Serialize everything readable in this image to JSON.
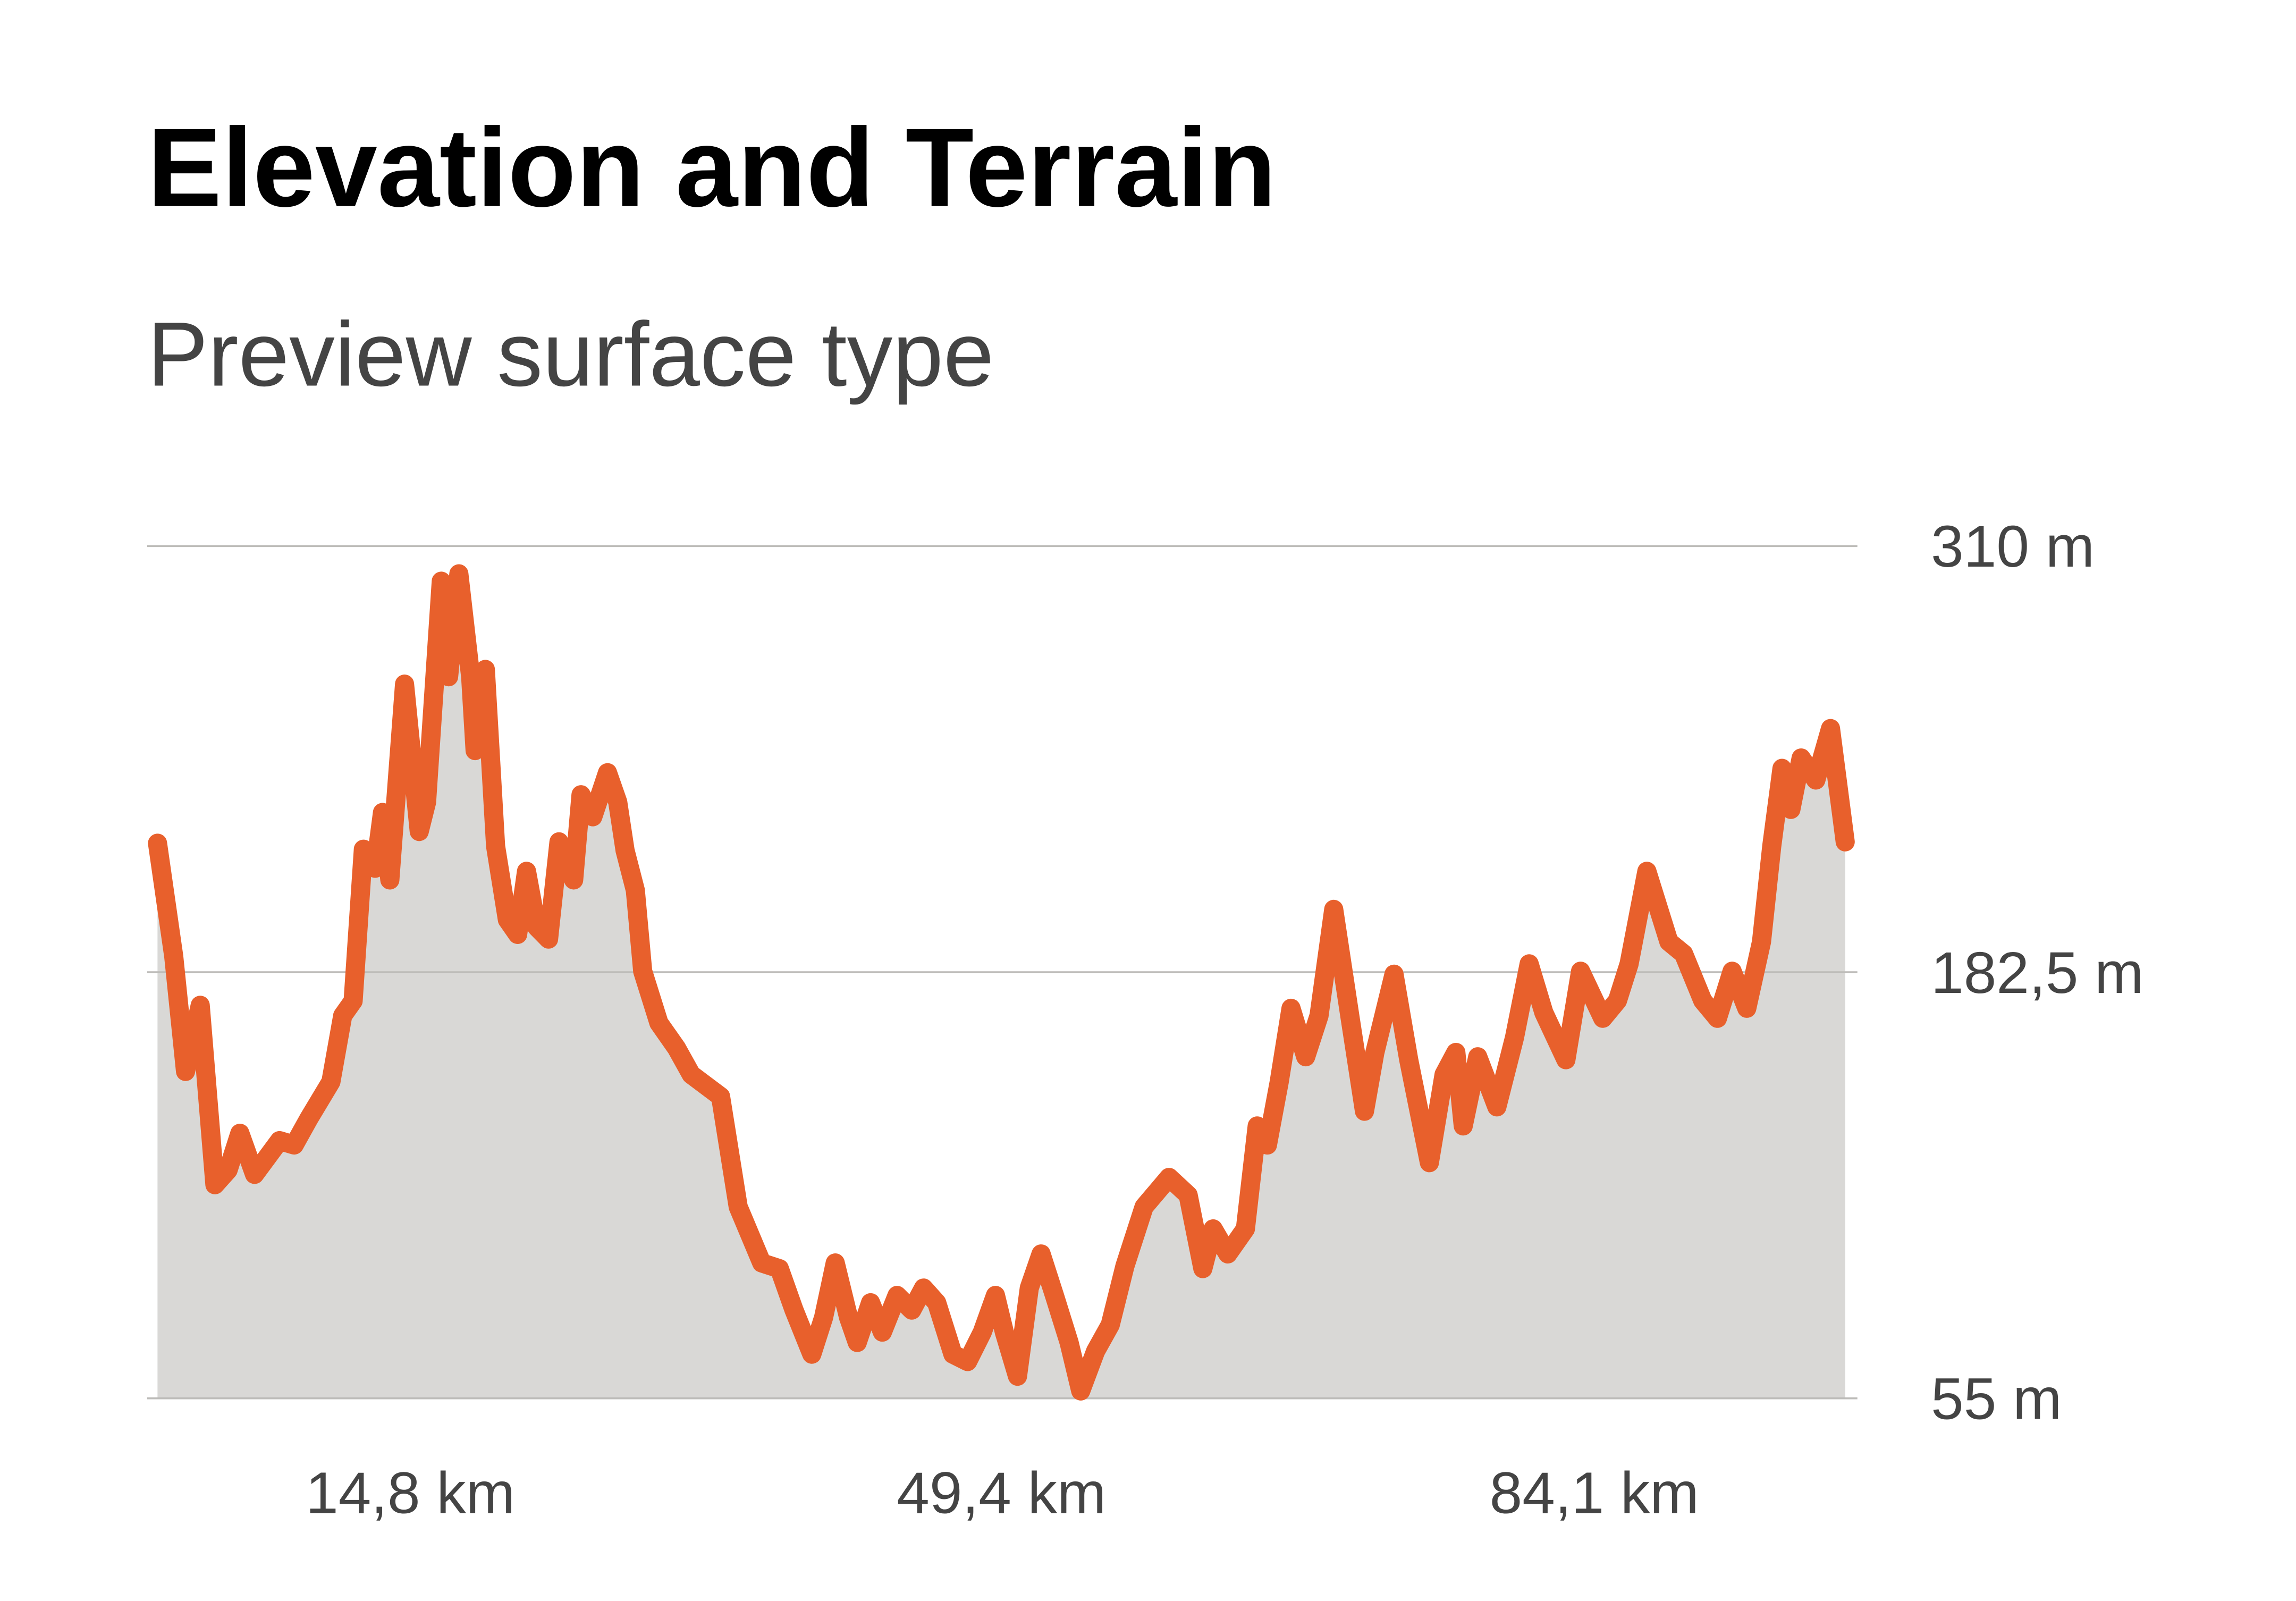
{
  "chart_data": {
    "type": "area",
    "title": "Elevation and Terrain",
    "subtitle": "Preview surface type",
    "color": "#e8602c",
    "fill": "#d9d8d6",
    "grid": true,
    "xlim": [
      0,
      98.9
    ],
    "ylim": [
      55,
      310
    ],
    "xticks": [
      {
        "value": 14.8,
        "label": "14,8 km"
      },
      {
        "value": 49.4,
        "label": "49,4 km"
      },
      {
        "value": 84.1,
        "label": "84,1 km"
      }
    ],
    "yticks": [
      {
        "value": 55,
        "label": "55 m"
      },
      {
        "value": 182.5,
        "label": "182,5 m"
      },
      {
        "value": 310,
        "label": "310 m"
      }
    ],
    "x": [
      0.0,
      0.95,
      1.64,
      2.5,
      3.36,
      4.13,
      4.82,
      5.68,
      7.14,
      8.0,
      8.86,
      10.15,
      10.84,
      11.45,
      12.05,
      12.74,
      13.17,
      13.6,
      14.46,
      15.32,
      15.75,
      16.61,
      17.04,
      17.64,
      18.33,
      18.59,
      19.19,
      19.79,
      20.48,
      21.08,
      21.6,
      22.2,
      22.89,
      23.5,
      24.36,
      24.79,
      25.48,
      26.34,
      26.94,
      27.37,
      27.97,
      28.4,
      29.35,
      30.38,
      31.24,
      32.96,
      33.99,
      35.37,
      36.4,
      37.26,
      38.3,
      38.99,
      39.67,
      40.45,
      40.96,
      41.74,
      42.43,
      43.29,
      44.15,
      44.84,
      45.61,
      46.56,
      47.42,
      48.28,
      49.05,
      49.57,
      50.34,
      51.03,
      51.72,
      52.5,
      53.36,
      54.04,
      54.91,
      55.77,
      56.63,
      57.75,
      59.21,
      60.33,
      61.19,
      61.79,
      62.65,
      63.68,
      64.37,
      64.97,
      65.66,
      66.35,
      67.21,
      67.99,
      68.85,
      69.79,
      70.65,
      71.26,
      72.38,
      73.24,
      74.45,
      75.31,
      76.0,
      76.43,
      77.28,
      78.4,
      79.43,
      80.29,
      81.15,
      82.44,
      83.3,
      84.6,
      85.46,
      86.14,
      87.18,
      88.47,
      89.33,
      90.45,
      91.31,
      92.17,
      93.03,
      93.89,
      94.49,
      95.09,
      95.61,
      96.21,
      97.07,
      97.93,
      98.79
    ],
    "values": [
      221.1,
      187.2,
      152.8,
      172.6,
      118.9,
      123.3,
      134.3,
      122.0,
      132.1,
      130.8,
      138.7,
      149.7,
      169.5,
      173.9,
      219.3,
      213.6,
      230.3,
      210.1,
      268.7,
      224.6,
      233.4,
      299.5,
      270.9,
      301.7,
      270.9,
      248.8,
      273.1,
      220.2,
      198.2,
      193.8,
      212.7,
      196.0,
      192.4,
      221.5,
      210.1,
      235.6,
      229.0,
      242.2,
      233.4,
      218.9,
      207.0,
      182.8,
      167.3,
      159.8,
      151.9,
      145.3,
      112.3,
      95.5,
      93.8,
      81.4,
      68.2,
      79.2,
      95.5,
      79.2,
      71.7,
      83.6,
      74.8,
      85.8,
      81.4,
      88.0,
      83.6,
      68.2,
      66.0,
      74.8,
      85.8,
      74.8,
      61.6,
      88.0,
      98.2,
      85.8,
      71.7,
      57.2,
      69.1,
      77.0,
      94.6,
      112.3,
      121.1,
      115.8,
      93.8,
      105.7,
      98.2,
      105.7,
      136.5,
      130.8,
      149.7,
      171.7,
      157.2,
      169.5,
      201.3,
      169.5,
      140.9,
      158.5,
      181.9,
      156.3,
      125.5,
      151.9,
      158.5,
      136.5,
      157.2,
      142.2,
      162.9,
      185.0,
      170.4,
      156.3,
      182.8,
      168.7,
      174.0,
      185.0,
      212.7,
      191.6,
      188.0,
      174.0,
      168.7,
      182.8,
      171.7,
      191.6,
      220.2,
      243.5,
      231.2,
      246.6,
      240.0,
      255.4,
      221.5
    ]
  }
}
